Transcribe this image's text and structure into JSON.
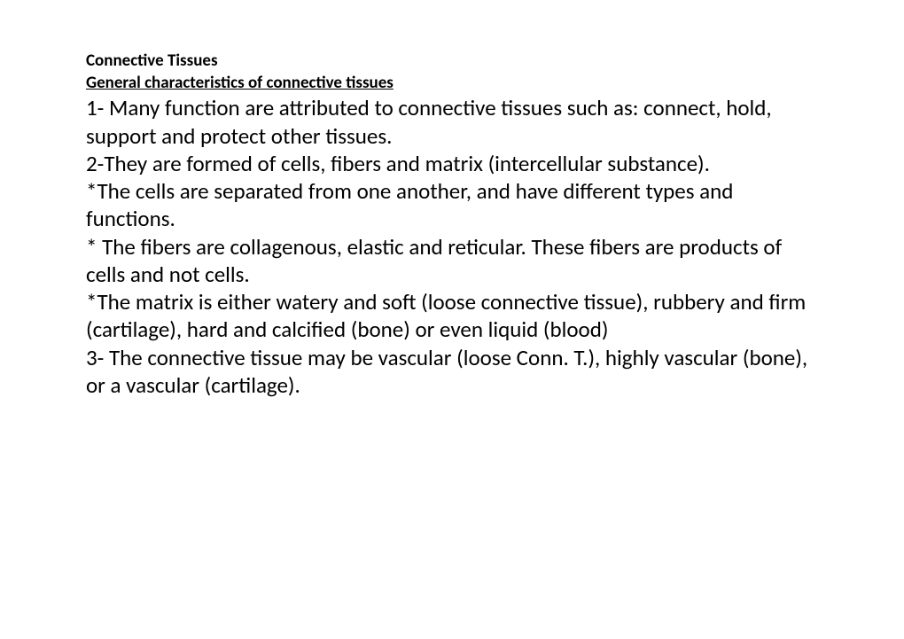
{
  "title": "Connective Tissues",
  "subtitle": "General characteristics of connective tissues",
  "paragraphs": {
    "p1": "1- Many  function  are attributed to connective tissues such as: connect, hold, support and protect other tissues.",
    "p2": "2-They are formed of cells, fibers and matrix (intercellular substance).",
    "p3": "   *The cells are separated from one another, and have different types and functions.",
    "p4": "*   The fibers are collagenous, elastic and reticular. These fibers are products of cells and not cells.",
    "p5": "*The matrix is either  watery  and  soft (loose connective tissue), rubbery and firm (cartilage), hard and calcified (bone) or even liquid (blood)",
    "p6": "3- The connective tissue may be vascular (loose Conn. T.), highly vascular (bone), or a vascular (cartilage)."
  }
}
